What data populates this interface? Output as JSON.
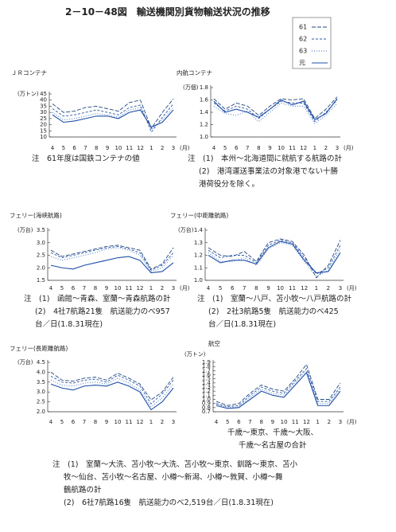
{
  "title": "2－10－48図　輸送機関別貨物輸送状況の推移",
  "legend": [
    {
      "name": "61",
      "color": "#23477f",
      "dash": "5 2"
    },
    {
      "name": "62",
      "color": "#2b58a6",
      "dash": "3 2"
    },
    {
      "name": "63",
      "color": "#3a6cc0",
      "dash": "1 2"
    },
    {
      "name": "元",
      "color": "#1f4fa8",
      "dash": ""
    }
  ],
  "chart_data": [
    {
      "type": "line",
      "title": "ＪＲコンテナ",
      "y_label": "(万トン)",
      "x_label": "(月)",
      "categories": [
        "4",
        "5",
        "6",
        "7",
        "8",
        "9",
        "10",
        "11",
        "12",
        "1",
        "2",
        "3"
      ],
      "series": [
        {
          "values": [
            37,
            30,
            31,
            34,
            35,
            33,
            31,
            38,
            40,
            17,
            30,
            41
          ]
        },
        {
          "values": [
            33,
            27,
            28,
            30,
            32,
            30,
            28,
            34,
            36,
            14,
            26,
            37
          ]
        },
        {
          "values": [
            30,
            24,
            25,
            27,
            29,
            28,
            26,
            32,
            34,
            16,
            24,
            34
          ]
        },
        {
          "values": [
            28,
            22,
            23,
            25,
            27,
            27,
            25,
            30,
            32,
            18,
            22,
            32
          ]
        }
      ],
      "ylim": [
        10,
        45
      ],
      "yticks": [
        10,
        15,
        20,
        25,
        30,
        35,
        40,
        45
      ]
    },
    {
      "type": "line",
      "title": "内航コンテナ",
      "y_label": "(万個)",
      "x_label": "(月)",
      "categories": [
        "4",
        "5",
        "6",
        "7",
        "8",
        "9",
        "10",
        "11",
        "12",
        "1",
        "2",
        "3"
      ],
      "series": [
        {
          "values": [
            1.62,
            1.45,
            1.55,
            1.5,
            1.35,
            1.5,
            1.62,
            1.6,
            1.62,
            1.3,
            1.45,
            1.65
          ]
        },
        {
          "values": [
            1.55,
            1.42,
            1.5,
            1.45,
            1.3,
            1.45,
            1.58,
            1.55,
            1.55,
            1.25,
            1.4,
            1.6
          ]
        },
        {
          "values": [
            1.5,
            1.38,
            1.35,
            1.42,
            1.25,
            1.4,
            1.55,
            1.5,
            1.5,
            1.22,
            1.35,
            1.55
          ]
        },
        {
          "values": [
            1.58,
            1.4,
            1.45,
            1.4,
            1.32,
            1.45,
            1.6,
            1.52,
            1.58,
            1.28,
            1.38,
            1.62
          ]
        }
      ],
      "ylim": [
        1,
        1.8
      ],
      "yticks": [
        {
          "value": 1,
          "label": "1.0"
        },
        1.2,
        1.4,
        1.6,
        1.8
      ]
    },
    {
      "type": "line",
      "title": "フェリー(海峡航路)",
      "y_label": "(万台)",
      "x_label": "(月)",
      "categories": [
        "4",
        "5",
        "6",
        "7",
        "8",
        "9",
        "10",
        "11",
        "12",
        "1",
        "2",
        "3"
      ],
      "series": [
        {
          "values": [
            2.7,
            2.45,
            2.55,
            2.65,
            2.75,
            2.85,
            2.9,
            2.8,
            2.7,
            1.95,
            2.15,
            2.8
          ]
        },
        {
          "values": [
            2.6,
            2.4,
            2.5,
            2.6,
            2.7,
            2.8,
            2.85,
            2.75,
            2.6,
            1.9,
            2.1,
            2.6
          ]
        },
        {
          "values": [
            2.45,
            2.3,
            2.4,
            2.5,
            2.6,
            2.75,
            2.8,
            2.7,
            2.5,
            1.85,
            2,
            2.5
          ]
        },
        {
          "values": [
            2.1,
            2,
            1.95,
            2.1,
            2.2,
            2.3,
            2.4,
            2.45,
            2.3,
            1.8,
            1.85,
            2.2
          ]
        }
      ],
      "ylim": [
        1.5,
        3.5
      ],
      "yticks": [
        1.5,
        {
          "value": 2,
          "label": "2.0"
        },
        2.5,
        {
          "value": 3,
          "label": "3.0"
        },
        3.5
      ]
    },
    {
      "type": "line",
      "title": "フェリー(中距離航路)",
      "y_label": "(万台)",
      "x_label": "(月)",
      "categories": [
        "4",
        "5",
        "6",
        "7",
        "8",
        "9",
        "10",
        "11",
        "12",
        "1",
        "2",
        "3"
      ],
      "series": [
        {
          "values": [
            1.26,
            1.2,
            1.19,
            1.23,
            1.15,
            1.3,
            1.33,
            1.31,
            1.2,
            1.02,
            1.12,
            1.32
          ]
        },
        {
          "values": [
            1.24,
            1.18,
            1.2,
            1.2,
            1.14,
            1.28,
            1.32,
            1.3,
            1.18,
            1.05,
            1.1,
            1.28
          ]
        },
        {
          "values": [
            1.22,
            1.15,
            1.15,
            1.18,
            1.12,
            1.25,
            1.3,
            1.28,
            1.15,
            1.03,
            1.08,
            1.25
          ]
        },
        {
          "values": [
            1.2,
            1.14,
            1.16,
            1.16,
            1.13,
            1.26,
            1.31,
            1.29,
            1.16,
            1.06,
            1.07,
            1.22
          ]
        }
      ],
      "ylim": [
        1,
        1.4
      ],
      "yticks": [
        {
          "value": 1,
          "label": "1.0"
        },
        1.1,
        1.2,
        1.3,
        1.4
      ]
    },
    {
      "type": "line",
      "title": "フェリー(長距離航路)",
      "y_label": "(万台)",
      "categories": [
        "4",
        "5",
        "6",
        "7",
        "8",
        "9",
        "10",
        "11",
        "12",
        "1",
        "2",
        "3"
      ],
      "series": [
        {
          "values": [
            4,
            3.6,
            3.55,
            3.7,
            3.75,
            3.6,
            3.95,
            3.7,
            3.4,
            2.6,
            3,
            3.75
          ]
        },
        {
          "values": [
            3.8,
            3.5,
            3.45,
            3.6,
            3.65,
            3.5,
            3.85,
            3.6,
            3.3,
            2.4,
            2.9,
            3.6
          ]
        },
        {
          "values": [
            3.6,
            3.35,
            3.3,
            3.45,
            3.5,
            3.4,
            3.7,
            3.45,
            3.1,
            2.25,
            2.7,
            3.4
          ]
        },
        {
          "values": [
            3.4,
            3.2,
            3.1,
            3.3,
            3.35,
            3.3,
            3.5,
            3.3,
            3,
            2.1,
            2.5,
            3.2
          ]
        }
      ],
      "ylim": [
        2,
        4.5
      ],
      "yticks": [
        {
          "value": 2,
          "label": "2.0"
        },
        2.5,
        {
          "value": 3,
          "label": "3.0"
        },
        3.5,
        {
          "value": 4,
          "label": "4.0"
        },
        4.5
      ]
    },
    {
      "type": "line",
      "title": "航空",
      "y_label": "(万トン)",
      "x_label": "(月)",
      "categories": [
        "4",
        "5",
        "6",
        "7",
        "8",
        "9",
        "10",
        "11",
        "12",
        "1",
        "2",
        "3"
      ],
      "series": [
        {
          "values": [
            0.95,
            0.85,
            0.9,
            1.15,
            1.35,
            1.25,
            1.2,
            1.5,
            1.85,
            1,
            1,
            1.4
          ]
        },
        {
          "values": [
            0.9,
            0.82,
            0.85,
            1.1,
            1.3,
            1.2,
            1.15,
            1.45,
            1.75,
            0.95,
            0.95,
            1.3
          ]
        },
        {
          "values": [
            0.88,
            0.8,
            0.82,
            1.05,
            1.25,
            1.15,
            1.1,
            1.4,
            1.7,
            0.9,
            0.9,
            1.25
          ]
        },
        {
          "values": [
            0.85,
            0.78,
            0.8,
            1,
            1.2,
            1.1,
            1.05,
            1.35,
            1.65,
            0.85,
            0.85,
            1.2
          ]
        }
      ],
      "ylim": [
        0.7,
        1.9
      ],
      "yticks": [
        0.7,
        0.8,
        0.9,
        {
          "value": 1,
          "label": "1.0"
        },
        1.1,
        1.2,
        1.3,
        1.4,
        1.5,
        1.6,
        1.7,
        1.8,
        1.9
      ]
    }
  ],
  "notes": [
    [
      "注　61年度は国鉄コンテナの値"
    ],
    [
      "注　(1)　本州～北海道間に就航する航路の計",
      "(2)　港湾運送事業法の対象港でない十勝",
      "港荷役分を除く。"
    ],
    [
      "注　(1)　函館～青森、室蘭～青森航路の計",
      "(2)　4社7航路21隻　航送能力のべ957",
      "台／日(1.8.31現在)"
    ],
    [
      "注　(1)　室蘭～八戸、苫小牧～八戸航路の計",
      "(2)　2社3航路5隻　航送能力のべ425",
      "台／日(1.8.31現在)"
    ],
    [
      "千歳～東京、千歳～大阪、",
      "千歳～名古屋の合計"
    ],
    [
      "注　(1)　室蘭～大洗、苫小牧～大洗、苫小牧～東京、釧路～東京、苫小",
      "牧～仙台、苫小牧～名古屋、小樽～新潟、小樽～敦賀、小樽～舞",
      "鶴航路の計",
      "(2)　6社7航路16隻　航送能力のべ2,519台／日(1.8.31現在)"
    ]
  ]
}
